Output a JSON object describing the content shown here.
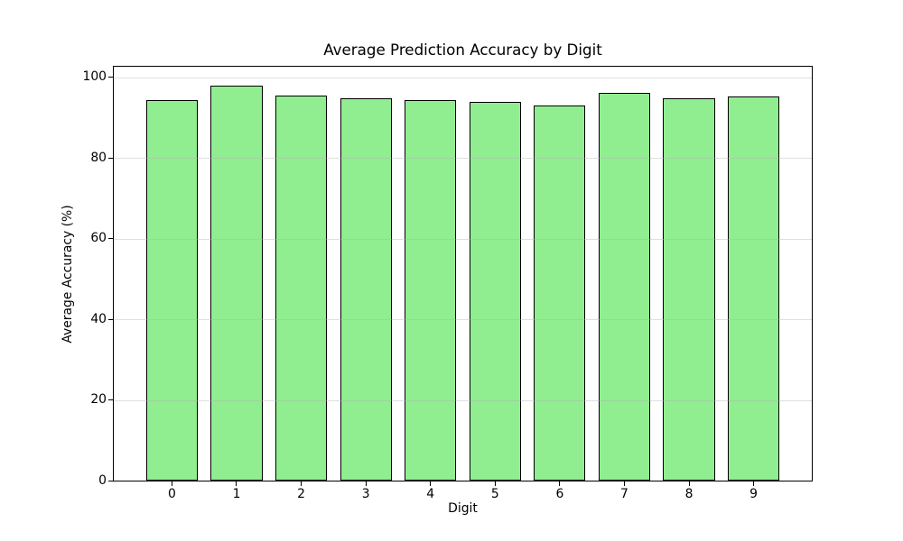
{
  "figure": {
    "background": "#ffffff"
  },
  "chart_data": {
    "type": "bar",
    "title": "Average Prediction Accuracy by Digit",
    "xlabel": "Digit",
    "ylabel": "Average Accuracy (%)",
    "categories": [
      "0",
      "1",
      "2",
      "3",
      "4",
      "5",
      "6",
      "7",
      "8",
      "9"
    ],
    "values": [
      94.4,
      97.9,
      95.4,
      94.7,
      94.4,
      93.9,
      93.0,
      96.1,
      94.7,
      95.3
    ],
    "ylim": [
      0,
      102.6
    ],
    "yticks": [
      0,
      20,
      40,
      60,
      80,
      100
    ],
    "bar_width_fraction": 0.8,
    "bar_color": "#90EE90",
    "bar_edge_color": "#000000",
    "grid_axis": "y",
    "grid_on": true,
    "grid_color": "rgba(176,176,176,0.4)",
    "grid_above_bars": true,
    "spine_color": "#000000",
    "text_color": "#000000",
    "legend_position": "none"
  }
}
